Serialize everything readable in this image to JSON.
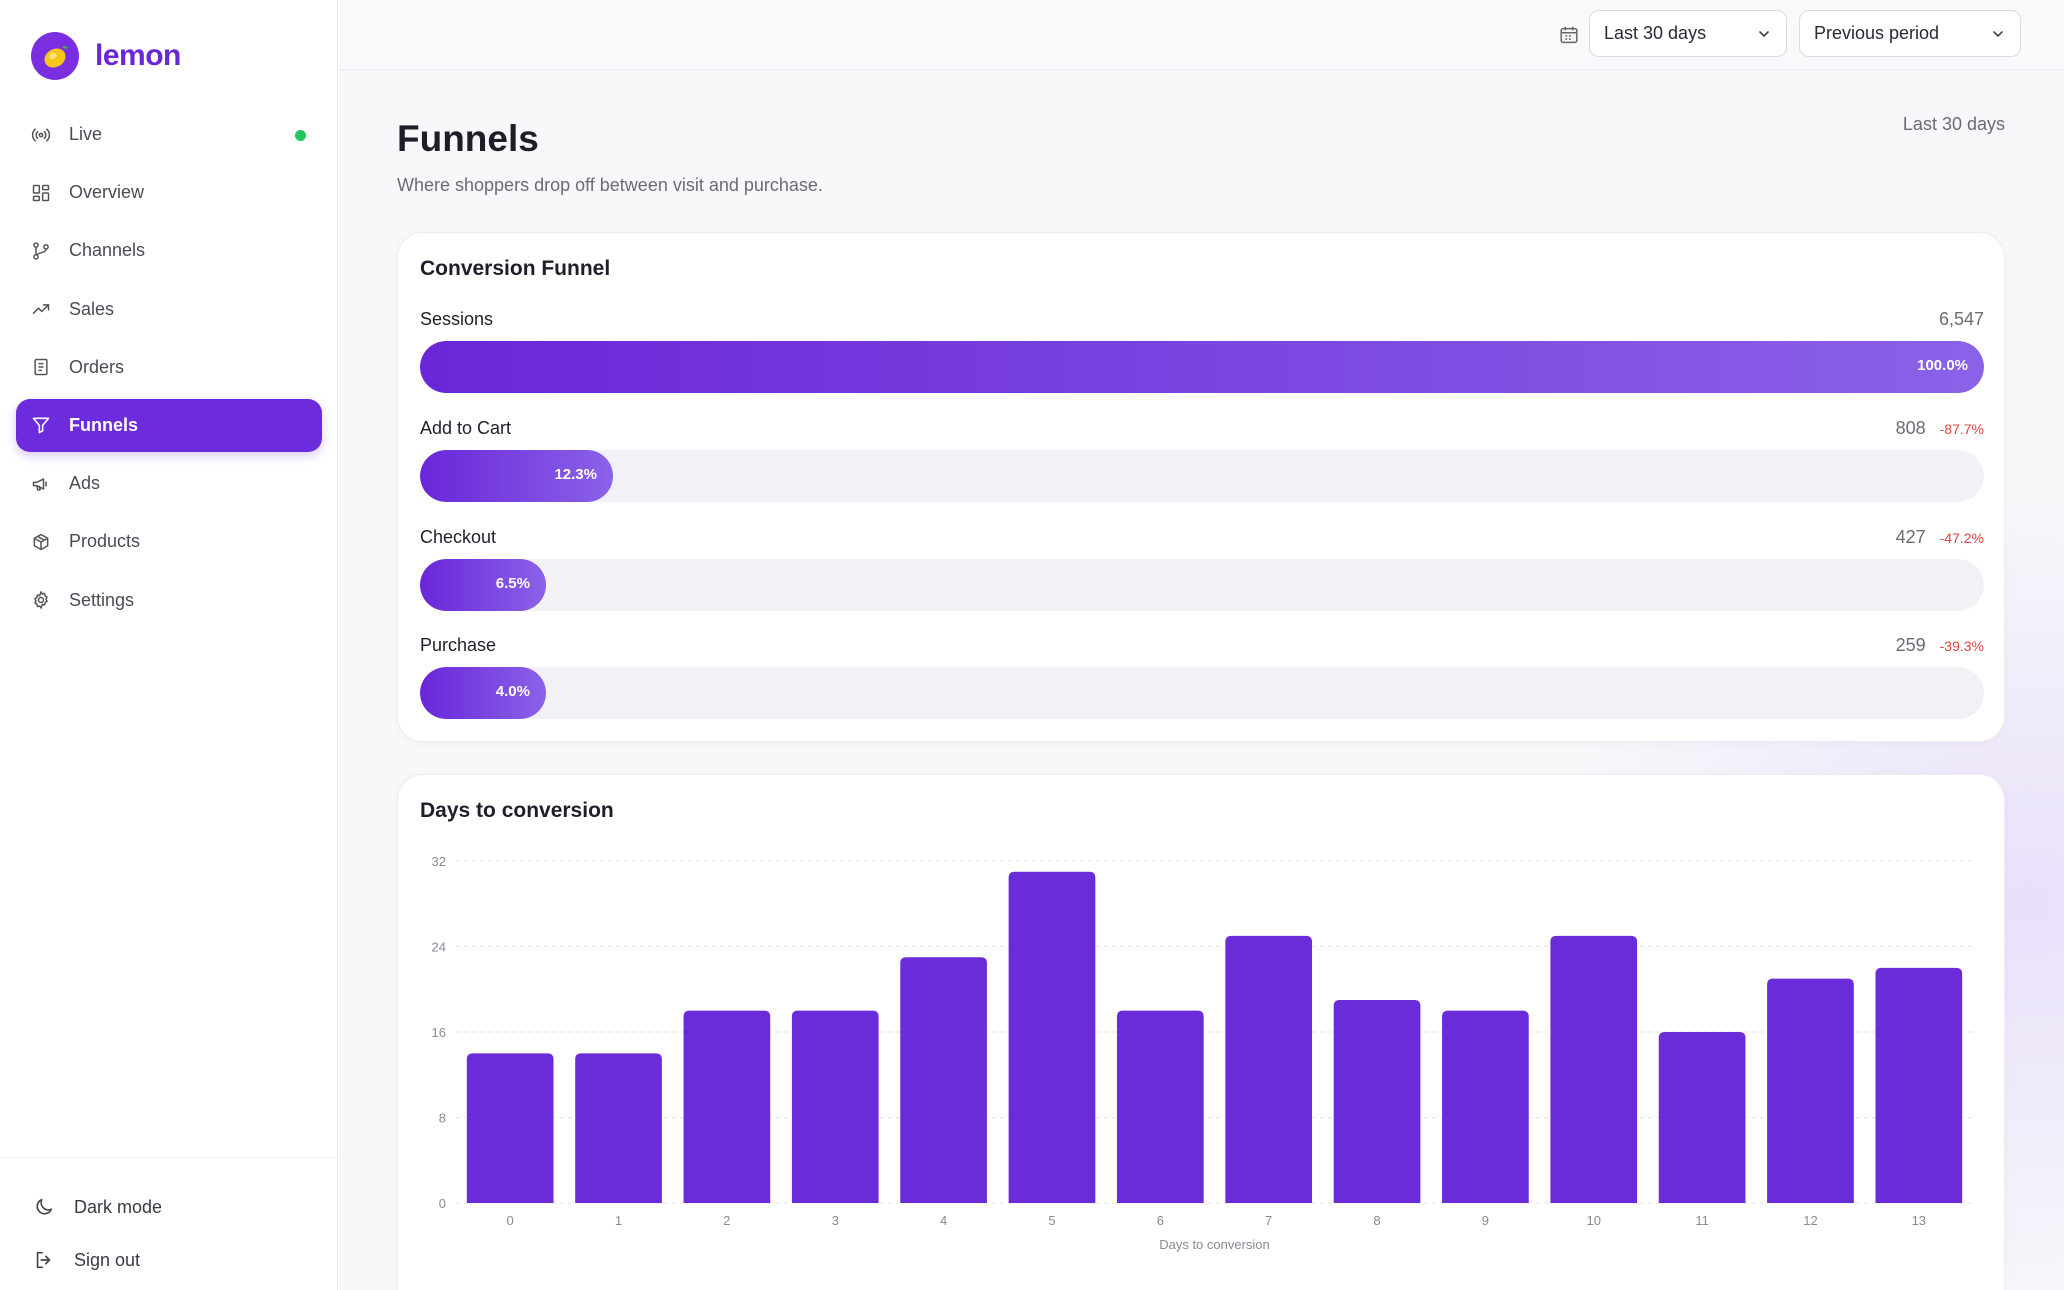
{
  "app": {
    "name": "lemon"
  },
  "sidebar": {
    "items": [
      {
        "label": "Live",
        "icon": "broadcast-icon",
        "live": true
      },
      {
        "label": "Overview",
        "icon": "grid-icon"
      },
      {
        "label": "Channels",
        "icon": "branch-icon"
      },
      {
        "label": "Sales",
        "icon": "trend-up-icon"
      },
      {
        "label": "Orders",
        "icon": "receipt-icon"
      },
      {
        "label": "Funnels",
        "icon": "funnel-icon",
        "active": true
      },
      {
        "label": "Ads",
        "icon": "megaphone-icon"
      },
      {
        "label": "Products",
        "icon": "box-icon"
      },
      {
        "label": "Settings",
        "icon": "gear-icon"
      }
    ],
    "bottom": {
      "dark_mode": "Dark mode",
      "sign_out": "Sign out"
    }
  },
  "topbar": {
    "range": "Last 30 days",
    "compare": "Previous period"
  },
  "page": {
    "title": "Funnels",
    "subtitle": "Where shoppers drop off between visit and purchase.",
    "period": "Last 30 days"
  },
  "funnel": {
    "title": "Conversion Funnel",
    "stages": [
      {
        "label": "Sessions",
        "count": "6,547",
        "pct": "100.0%",
        "fraction": 1.0,
        "delta": ""
      },
      {
        "label": "Add to Cart",
        "count": "808",
        "pct": "12.3%",
        "fraction": 0.123,
        "delta": "-87.7%"
      },
      {
        "label": "Checkout",
        "count": "427",
        "pct": "6.5%",
        "fraction": 0.065,
        "delta": "-47.2%"
      },
      {
        "label": "Purchase",
        "count": "259",
        "pct": "4.0%",
        "fraction": 0.04,
        "delta": "-39.3%"
      }
    ]
  },
  "days_card": {
    "title": "Days to conversion"
  },
  "chart_data": {
    "type": "bar",
    "categories": [
      "0",
      "1",
      "2",
      "3",
      "4",
      "5",
      "6",
      "7",
      "8",
      "9",
      "10",
      "11",
      "12",
      "13"
    ],
    "values": [
      14,
      14,
      18,
      18,
      23,
      31,
      18,
      25,
      19,
      18,
      25,
      16,
      21,
      22
    ],
    "xlabel": "Days to conversion",
    "ylabel": "",
    "ylim": [
      0,
      32
    ],
    "yticks": [
      "0",
      "8",
      "16",
      "24",
      "32"
    ],
    "grid": true,
    "bar_color": "#6a2bd9"
  },
  "colors": {
    "accent": "#6c2bdc",
    "live": "#22c55e",
    "negative": "#e0443e"
  }
}
